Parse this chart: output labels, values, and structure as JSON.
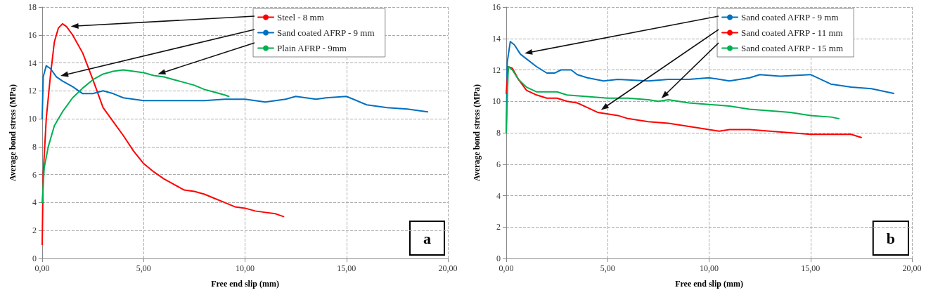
{
  "chart_data": [
    {
      "type": "line",
      "xlabel": "Free end slip (mm)",
      "ylabel": "Average bond stress (MPa)",
      "xlim": [
        0,
        20
      ],
      "ylim": [
        0,
        18
      ],
      "xticks": [
        {
          "value": 0,
          "label": "0,00"
        },
        {
          "value": 5,
          "label": "5,00"
        },
        {
          "value": 10,
          "label": "10,00"
        },
        {
          "value": 15,
          "label": "15,00"
        },
        {
          "value": 20,
          "label": "20,00"
        }
      ],
      "yticks": [
        0,
        2,
        4,
        6,
        8,
        10,
        12,
        14,
        16,
        18
      ],
      "grid": true,
      "legend": "top right",
      "marker": "none",
      "line_style": "solid",
      "annotations": [
        "a"
      ],
      "series": [
        {
          "name": "Steel - 8 mm",
          "color": "#ff0000",
          "x": [
            0,
            0.05,
            0.2,
            0.4,
            0.6,
            0.8,
            1.0,
            1.2,
            1.5,
            2,
            2.5,
            3,
            3.5,
            4,
            4.5,
            5,
            5.5,
            6,
            6.5,
            7,
            7.5,
            8,
            8.5,
            9,
            9.5,
            10,
            10.5,
            11,
            11.5,
            11.9
          ],
          "values": [
            1,
            6,
            10,
            13,
            15.5,
            16.5,
            16.8,
            16.6,
            16,
            14.7,
            12.8,
            10.8,
            9.8,
            8.8,
            7.7,
            6.8,
            6.2,
            5.7,
            5.3,
            4.9,
            4.8,
            4.6,
            4.3,
            4,
            3.7,
            3.6,
            3.4,
            3.3,
            3.2,
            3.0
          ]
        },
        {
          "name": "Sand coated AFRP - 9 mm",
          "color": "#0070c0",
          "x": [
            0,
            0.05,
            0.2,
            0.4,
            0.7,
            1,
            1.5,
            2,
            2.5,
            3,
            3.5,
            4,
            5,
            6,
            7,
            8,
            9,
            10,
            11,
            12,
            12.5,
            13.5,
            14,
            15,
            16,
            17,
            18,
            19
          ],
          "values": [
            10,
            13,
            13.8,
            13.6,
            13,
            12.7,
            12.3,
            11.8,
            11.8,
            12,
            11.8,
            11.5,
            11.3,
            11.3,
            11.3,
            11.3,
            11.4,
            11.4,
            11.2,
            11.4,
            11.6,
            11.4,
            11.5,
            11.6,
            11.0,
            10.8,
            10.7,
            10.5
          ]
        },
        {
          "name": "Plain AFRP - 9mm",
          "color": "#00b050",
          "x": [
            0,
            0.1,
            0.3,
            0.6,
            1,
            1.5,
            2,
            2.5,
            3,
            3.5,
            4,
            4.5,
            5,
            5.5,
            6,
            6.5,
            7,
            7.5,
            8,
            8.5,
            9,
            9.2
          ],
          "values": [
            4,
            6.5,
            8,
            9.5,
            10.5,
            11.5,
            12.2,
            12.8,
            13.2,
            13.4,
            13.5,
            13.4,
            13.3,
            13.1,
            13,
            12.8,
            12.6,
            12.4,
            12.1,
            11.9,
            11.7,
            11.6
          ]
        }
      ]
    },
    {
      "type": "line",
      "xlabel": "Free end slip (mm)",
      "ylabel": "Average bond stress (MPa)",
      "xlim": [
        0,
        20
      ],
      "ylim": [
        0,
        16
      ],
      "xticks": [
        {
          "value": 0,
          "label": "0,00"
        },
        {
          "value": 5,
          "label": "5,00"
        },
        {
          "value": 10,
          "label": "10,00"
        },
        {
          "value": 15,
          "label": "15,00"
        },
        {
          "value": 20,
          "label": "20,00"
        }
      ],
      "yticks": [
        0,
        2,
        4,
        6,
        8,
        10,
        12,
        14,
        16
      ],
      "grid": true,
      "legend": "top right",
      "marker": "none",
      "line_style": "solid",
      "annotations": [
        "b"
      ],
      "series": [
        {
          "name": "Sand coated AFRP - 9 mm",
          "color": "#0070c0",
          "x": [
            0,
            0.05,
            0.2,
            0.4,
            0.7,
            1,
            1.5,
            2,
            2.4,
            2.7,
            3.2,
            3.5,
            4,
            4.8,
            5.5,
            7,
            8,
            9,
            10,
            11,
            12,
            12.5,
            13.5,
            15,
            16,
            17,
            18,
            19.1
          ],
          "values": [
            8,
            12.5,
            13.8,
            13.6,
            13,
            12.7,
            12.2,
            11.8,
            11.8,
            12,
            12,
            11.7,
            11.5,
            11.3,
            11.4,
            11.3,
            11.4,
            11.4,
            11.5,
            11.3,
            11.5,
            11.7,
            11.6,
            11.7,
            11.1,
            10.9,
            10.8,
            10.5
          ]
        },
        {
          "name": "Sand coated AFRP - 11 mm",
          "color": "#ff0000",
          "x": [
            0,
            0.1,
            0.3,
            0.6,
            1,
            1.5,
            2,
            2.5,
            3,
            3.5,
            4,
            4.5,
            5,
            5.5,
            6,
            7,
            8,
            9,
            10,
            10.5,
            11,
            12,
            13,
            14,
            15,
            16,
            17,
            17.5
          ],
          "values": [
            10.5,
            12.2,
            12.1,
            11.4,
            10.7,
            10.4,
            10.2,
            10.2,
            10,
            9.9,
            9.6,
            9.3,
            9.2,
            9.1,
            8.9,
            8.7,
            8.6,
            8.4,
            8.2,
            8.1,
            8.2,
            8.2,
            8.1,
            8,
            7.9,
            7.9,
            7.9,
            7.7
          ]
        },
        {
          "name": "Sand coated AFRP - 15 mm",
          "color": "#00b050",
          "x": [
            0,
            0.1,
            0.3,
            0.6,
            1,
            1.5,
            2,
            2.5,
            3,
            4,
            5,
            6,
            7,
            7.5,
            8,
            9,
            10,
            11,
            12,
            13,
            14,
            15,
            16,
            16.4
          ],
          "values": [
            8,
            12.2,
            12,
            11.4,
            10.9,
            10.6,
            10.6,
            10.6,
            10.4,
            10.3,
            10.2,
            10.2,
            10.1,
            10,
            10.1,
            9.9,
            9.8,
            9.7,
            9.5,
            9.4,
            9.3,
            9.1,
            9.0,
            8.9
          ]
        }
      ]
    }
  ]
}
